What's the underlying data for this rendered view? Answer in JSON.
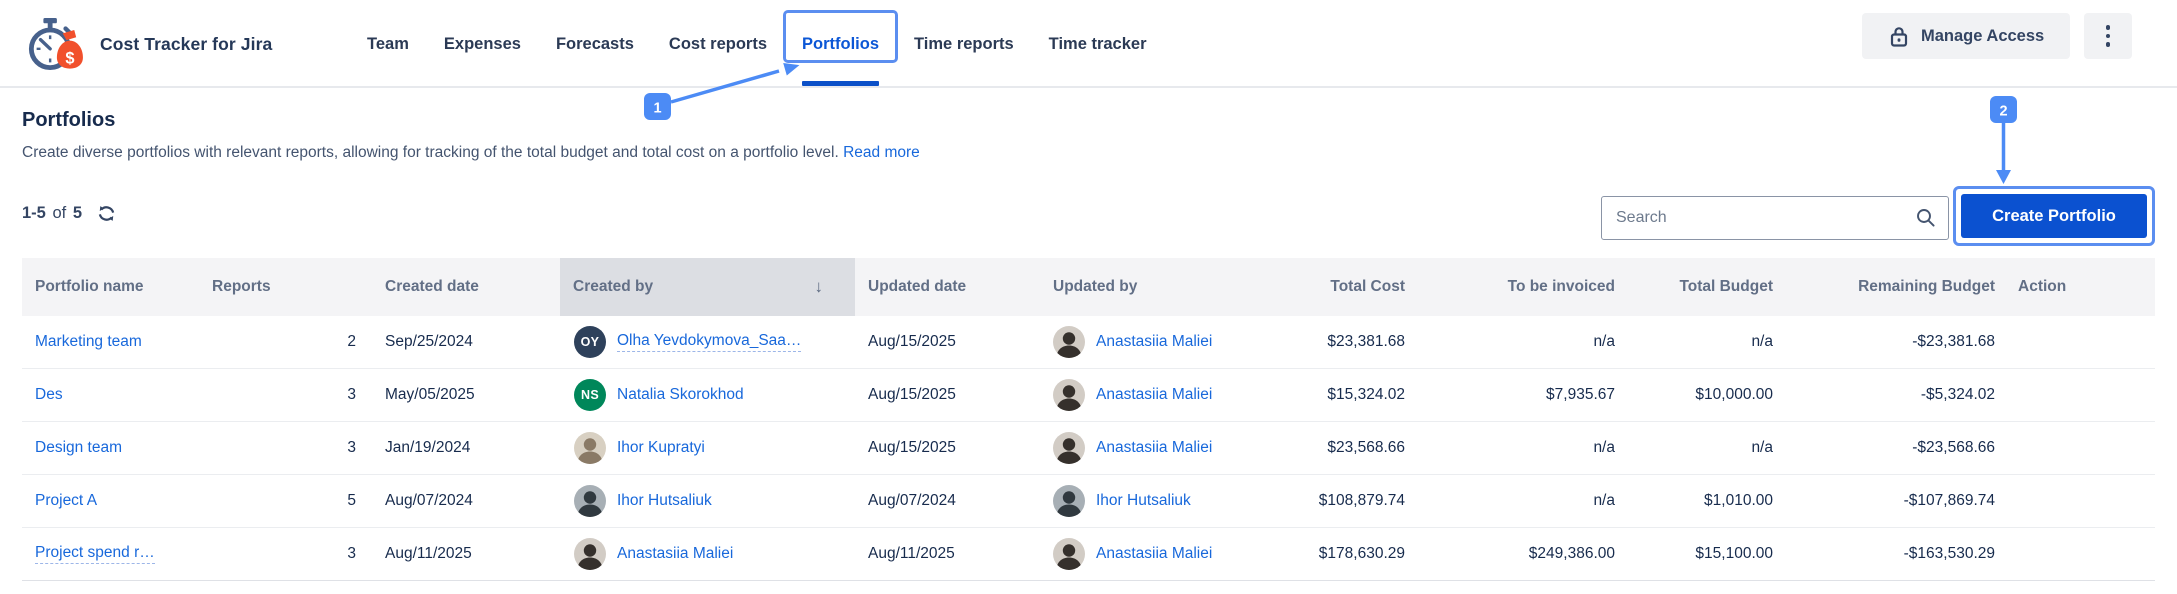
{
  "app": {
    "title": "Cost Tracker for Jira",
    "logo": "stopwatch-moneybag-logo"
  },
  "nav": {
    "items": [
      {
        "label": "Team",
        "active": false
      },
      {
        "label": "Expenses",
        "active": false
      },
      {
        "label": "Forecasts",
        "active": false
      },
      {
        "label": "Cost reports",
        "active": false
      },
      {
        "label": "Portfolios",
        "active": true
      },
      {
        "label": "Time reports",
        "active": false
      },
      {
        "label": "Time tracker",
        "active": false
      }
    ]
  },
  "header_actions": {
    "manage_access_label": "Manage Access",
    "manage_access_icon": "lock-icon",
    "more_menu_icon": "kebab-menu-icon"
  },
  "annotations": {
    "step1": "1",
    "step2": "2",
    "accent": "#4c8bf5",
    "outline": "#5b8ef0"
  },
  "page": {
    "title": "Portfolios",
    "description": "Create diverse portfolios with relevant reports, allowing for tracking of the total budget and total cost on a portfolio level.",
    "read_more_label": "Read more"
  },
  "toolbar": {
    "count_range": "1-5",
    "count_of": "of",
    "count_total": "5",
    "refresh_icon": "refresh-icon",
    "search_placeholder": "Search",
    "search_icon": "magnifier-icon",
    "create_button_label": "Create Portfolio"
  },
  "table": {
    "columns": [
      "Portfolio name",
      "Reports",
      "Created date",
      "Created by",
      "Updated date",
      "Updated by",
      "Total Cost",
      "To be invoiced",
      "Total Budget",
      "Remaining Budget",
      "Action"
    ],
    "sorted_column": "Created by",
    "sort_direction_glyph": "↓",
    "rows": [
      {
        "name": "Marketing team",
        "name_truncated": false,
        "reports": "2",
        "created_date": "Sep/25/2024",
        "created_by": {
          "name": "Olha Yevdokymova_Saa…",
          "truncated": true,
          "avatar": {
            "kind": "initials",
            "initials": "OY",
            "bg": "#2e415b",
            "fg": "#ffffff"
          }
        },
        "updated_date": "Aug/15/2025",
        "updated_by": {
          "name": "Anastasiia Maliei",
          "truncated": false,
          "avatar": {
            "kind": "photo",
            "bg": "#d2ccc5",
            "fg": "#35302c"
          }
        },
        "total_cost": "$23,381.68",
        "to_be_invoiced": "n/a",
        "total_budget": "n/a",
        "remaining_budget": "-$23,381.68"
      },
      {
        "name": "Des",
        "name_truncated": false,
        "reports": "3",
        "created_date": "May/05/2025",
        "created_by": {
          "name": "Natalia Skorokhod",
          "truncated": false,
          "avatar": {
            "kind": "initials",
            "initials": "NS",
            "bg": "#00875a",
            "fg": "#ffffff"
          }
        },
        "updated_date": "Aug/15/2025",
        "updated_by": {
          "name": "Anastasiia Maliei",
          "truncated": false,
          "avatar": {
            "kind": "photo",
            "bg": "#d2ccc5",
            "fg": "#35302c"
          }
        },
        "total_cost": "$15,324.02",
        "to_be_invoiced": "$7,935.67",
        "total_budget": "$10,000.00",
        "remaining_budget": "-$5,324.02"
      },
      {
        "name": "Design team",
        "name_truncated": false,
        "reports": "3",
        "created_date": "Jan/19/2024",
        "created_by": {
          "name": "Ihor Kupratyi",
          "truncated": false,
          "avatar": {
            "kind": "photo",
            "bg": "#d8d0c2",
            "fg": "#8a7a66"
          }
        },
        "updated_date": "Aug/15/2025",
        "updated_by": {
          "name": "Anastasiia Maliei",
          "truncated": false,
          "avatar": {
            "kind": "photo",
            "bg": "#d2ccc5",
            "fg": "#35302c"
          }
        },
        "total_cost": "$23,568.66",
        "to_be_invoiced": "n/a",
        "total_budget": "n/a",
        "remaining_budget": "-$23,568.66"
      },
      {
        "name": "Project A",
        "name_truncated": false,
        "reports": "5",
        "created_date": "Aug/07/2024",
        "created_by": {
          "name": "Ihor Hutsaliuk",
          "truncated": false,
          "avatar": {
            "kind": "photo",
            "bg": "#a7afb5",
            "fg": "#30393f"
          }
        },
        "updated_date": "Aug/07/2024",
        "updated_by": {
          "name": "Ihor Hutsaliuk",
          "truncated": false,
          "avatar": {
            "kind": "photo",
            "bg": "#a7afb5",
            "fg": "#30393f"
          }
        },
        "total_cost": "$108,879.74",
        "to_be_invoiced": "n/a",
        "total_budget": "$1,010.00",
        "remaining_budget": "-$107,869.74"
      },
      {
        "name": "Project spend r…",
        "name_truncated": true,
        "reports": "3",
        "created_date": "Aug/11/2025",
        "created_by": {
          "name": "Anastasiia Maliei",
          "truncated": false,
          "avatar": {
            "kind": "photo",
            "bg": "#d2ccc5",
            "fg": "#35302c"
          }
        },
        "updated_date": "Aug/11/2025",
        "updated_by": {
          "name": "Anastasiia Maliei",
          "truncated": false,
          "avatar": {
            "kind": "photo",
            "bg": "#d2ccc5",
            "fg": "#35302c"
          }
        },
        "total_cost": "$178,630.29",
        "to_be_invoiced": "$249,386.00",
        "total_budget": "$15,100.00",
        "remaining_budget": "-$163,530.29"
      }
    ]
  },
  "colors": {
    "link": "#1868db",
    "active_tab": "#0c57d6",
    "tab_underline": "#0b50c8",
    "create_button_bg": "#0b51d0",
    "header_bg": "#f4f4f6",
    "sorted_header_bg": "#dcdee3",
    "logo_watch": "#47618c",
    "logo_bag": "#f1502c"
  }
}
